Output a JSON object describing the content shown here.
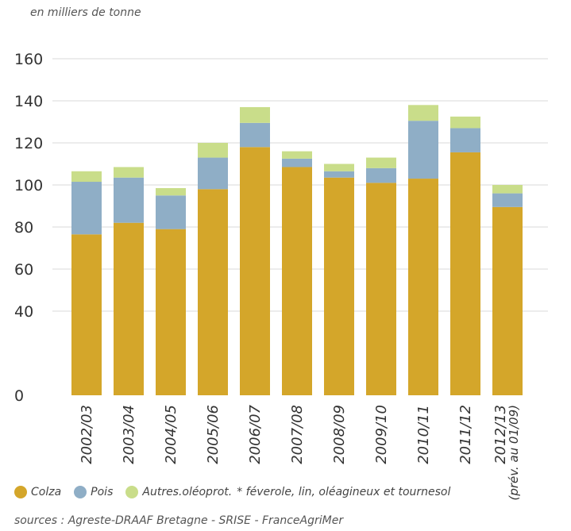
{
  "unit_label": "en milliers de tonne",
  "legend_note": "* féverole, lin, oléagineux et tournesol",
  "sources": "sources : Agreste-DRAAF Bretagne - SRISE - FranceAgriMer",
  "colors": {
    "colza": "#d4a62a",
    "pois": "#8faec6",
    "autres": "#c9dd8a",
    "grid": "#d9d9d9"
  },
  "chart_data": {
    "type": "bar",
    "stacked": true,
    "categories": [
      "2002/03",
      "2003/04",
      "2004/05",
      "2005/06",
      "2006/07",
      "2007/08",
      "2008/09",
      "2009/10",
      "2010/11",
      "2011/12",
      "2012/13"
    ],
    "category_sublabels": [
      "",
      "",
      "",
      "",
      "",
      "",
      "",
      "",
      "",
      "",
      "(prév. au 01/09)"
    ],
    "series": [
      {
        "name": "Colza",
        "color_key": "colza",
        "values": [
          76.5,
          82,
          79,
          98,
          118,
          108.5,
          103.5,
          101,
          103,
          115.5,
          89.5
        ]
      },
      {
        "name": "Pois",
        "color_key": "pois",
        "values": [
          25,
          21.5,
          16,
          15,
          11.5,
          4,
          3,
          7,
          27.5,
          11.5,
          6.5
        ]
      },
      {
        "name": "Autres.oléoprot.",
        "color_key": "autres",
        "values": [
          5,
          5,
          3.5,
          7,
          7.5,
          3.5,
          3.5,
          5,
          7.5,
          5.5,
          4
        ]
      }
    ],
    "ylim": [
      0,
      160
    ],
    "yticks": [
      0,
      40,
      60,
      80,
      100,
      120,
      140,
      160
    ],
    "grid": true,
    "legend_position": "bottom"
  }
}
